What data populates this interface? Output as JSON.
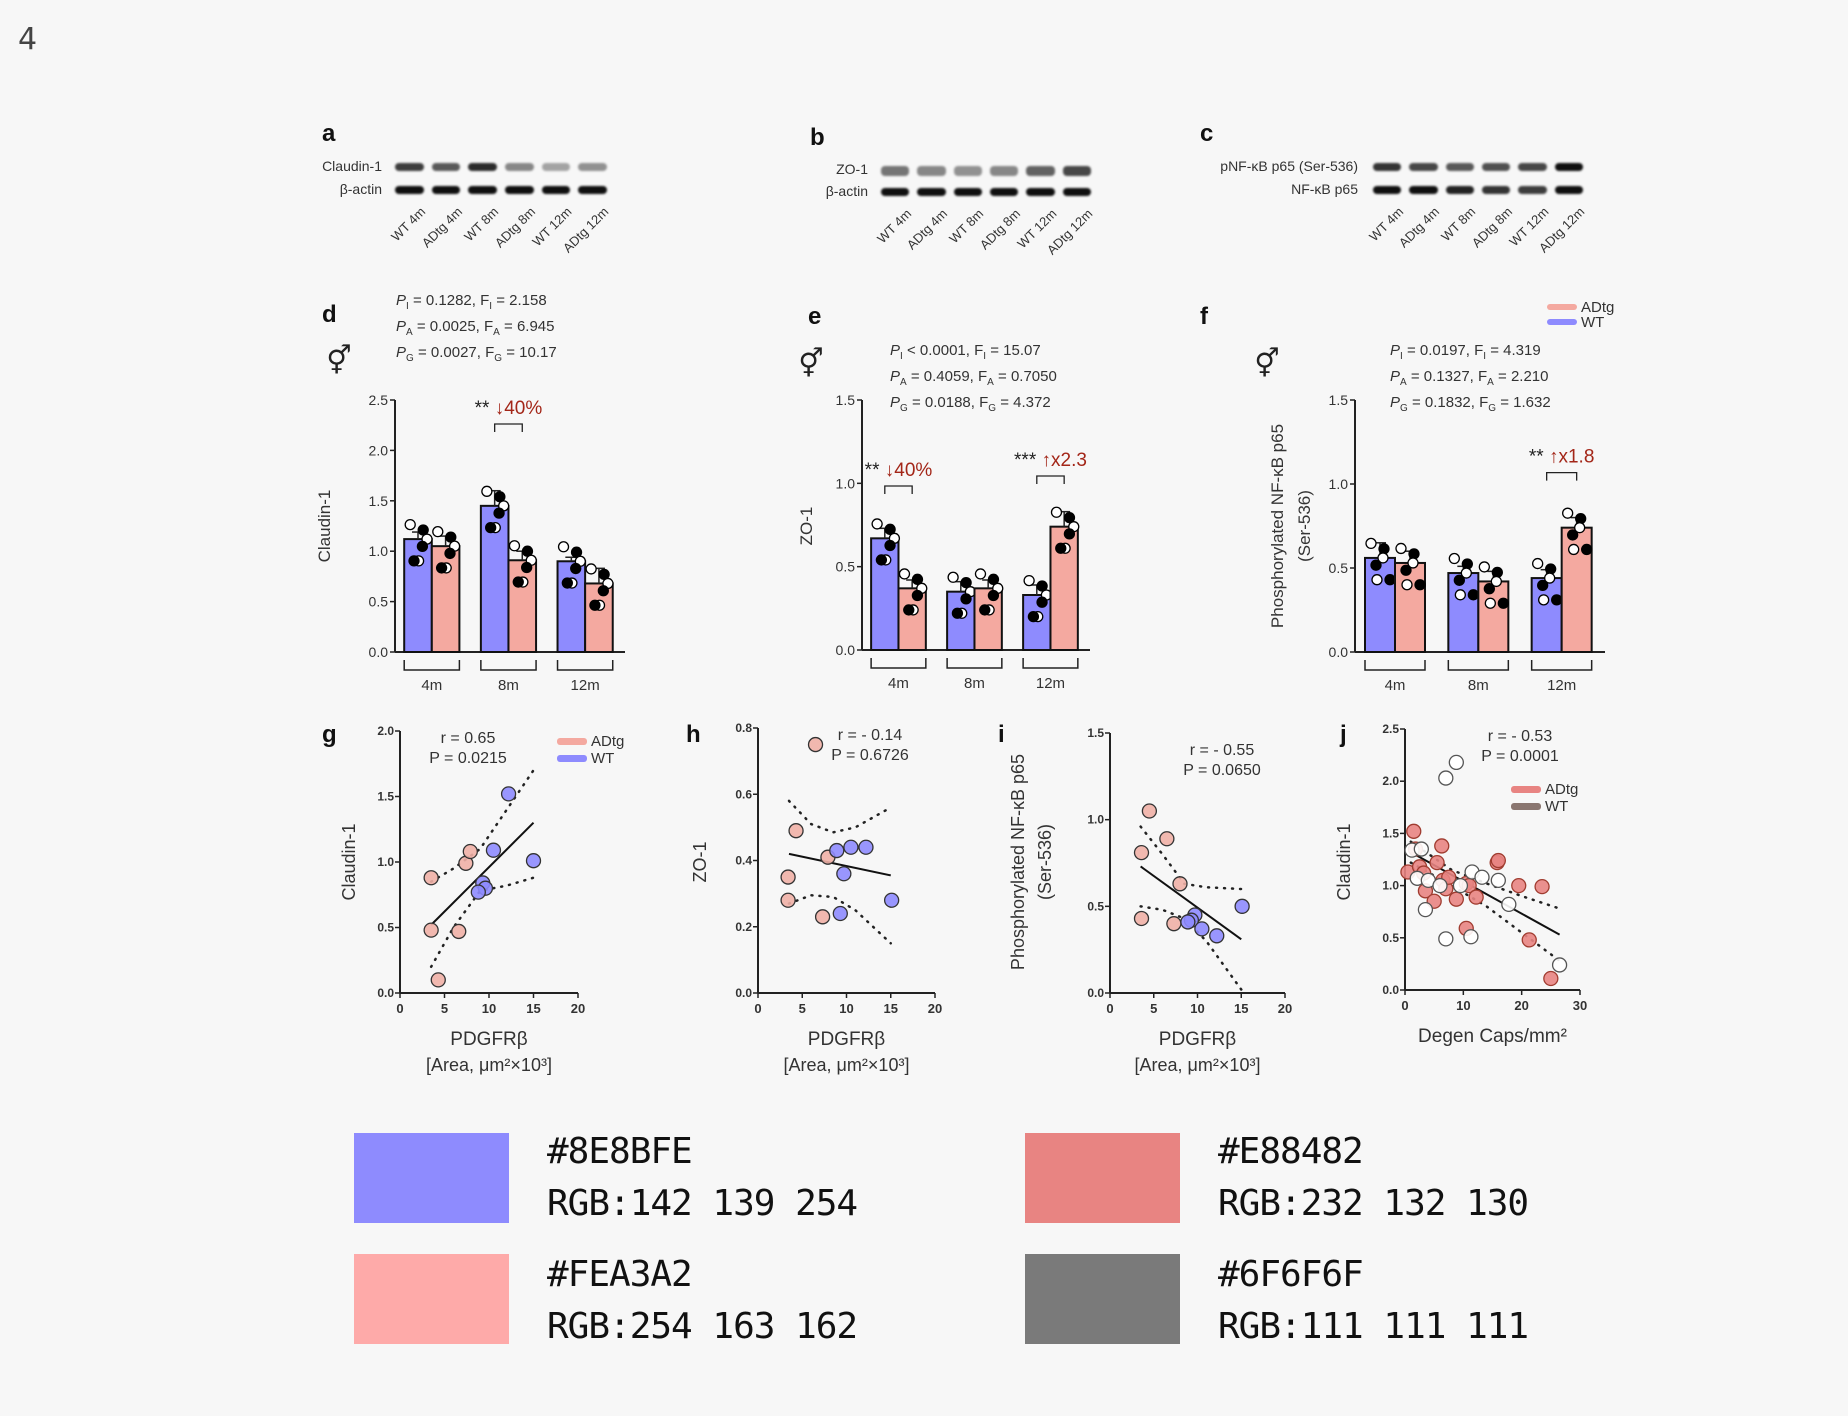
{
  "figure_number": "4",
  "colors": {
    "wt_bar": "#8E8BFE",
    "adtg_bar": "#FEA3A2",
    "adtg_dark": "#E88482",
    "grey": "#6F6F6F"
  },
  "blots": [
    {
      "panel": "a",
      "rows": [
        "Claudin-1",
        "β-actin"
      ],
      "lanes": [
        "WT 4m",
        "ADtg 4m",
        "WT 8m",
        "ADtg 8m",
        "WT 12m",
        "ADtg 12m"
      ],
      "intensity": [
        [
          0.75,
          0.6,
          0.85,
          0.35,
          0.2,
          0.3
        ],
        [
          1,
          1,
          1,
          1,
          1,
          1
        ]
      ]
    },
    {
      "panel": "b",
      "rows": [
        "ZO-1",
        "β-actin"
      ],
      "lanes": [
        "WT 4m",
        "ADtg 4m",
        "WT 8m",
        "ADtg 8m",
        "WT 12m",
        "ADtg 12m"
      ],
      "intensity": [
        [
          0.45,
          0.35,
          0.3,
          0.35,
          0.55,
          0.7
        ],
        [
          1,
          1,
          1,
          1,
          1,
          1
        ]
      ]
    },
    {
      "panel": "c",
      "rows": [
        "pNF-κB p65 (Ser-536)",
        "NF-κB p65"
      ],
      "lanes": [
        "WT 4m",
        "ADtg 4m",
        "WT 8m",
        "ADtg 8m",
        "WT 12m",
        "ADtg 12m"
      ],
      "intensity": [
        [
          0.8,
          0.7,
          0.6,
          0.65,
          0.7,
          1
        ],
        [
          1,
          1,
          0.9,
          0.8,
          0.75,
          1
        ]
      ]
    }
  ],
  "sex_symbol": "⚥",
  "chart_data": [
    {
      "panel": "d",
      "type": "bar",
      "ylabel": "Claudin-1",
      "ylim": [
        0,
        2.5
      ],
      "yticks": [
        "0.0",
        "0.5",
        "1.0",
        "1.5",
        "2.0",
        "2.5"
      ],
      "categories": [
        "4m",
        "8m",
        "12m"
      ],
      "series": [
        {
          "name": "WT",
          "values": [
            1.12,
            1.45,
            0.9
          ],
          "sem": [
            0.07,
            0.15,
            0.04
          ]
        },
        {
          "name": "ADtg",
          "values": [
            1.05,
            0.91,
            0.68
          ],
          "sem": [
            0.1,
            0.09,
            0.15
          ]
        }
      ],
      "stats": [
        {
          "p": "P",
          "sub": "I",
          "text": " = 0.1282, F",
          "fsub": "I",
          "ftext": " = 2.158"
        },
        {
          "p": "P",
          "sub": "A",
          "text": " = 0.0025, F",
          "fsub": "A",
          "ftext": " = 6.945"
        },
        {
          "p": "P",
          "sub": "G",
          "text": " = 0.0027, F",
          "fsub": "G",
          "ftext": " = 10.17"
        }
      ],
      "annotation": {
        "category": "8m",
        "stars": "**",
        "arrow": "↓",
        "change": "40%"
      }
    },
    {
      "panel": "e",
      "type": "bar",
      "ylabel": "ZO-1",
      "ylim": [
        0,
        1.5
      ],
      "yticks": [
        "0.0",
        "0.5",
        "1.0",
        "1.5"
      ],
      "categories": [
        "4m",
        "8m",
        "12m"
      ],
      "series": [
        {
          "name": "WT",
          "values": [
            0.67,
            0.35,
            0.33
          ],
          "sem": [
            0.06,
            0.06,
            0.06
          ]
        },
        {
          "name": "ADtg",
          "values": [
            0.37,
            0.37,
            0.74
          ],
          "sem": [
            0.05,
            0.05,
            0.09
          ]
        }
      ],
      "stats": [
        {
          "p": "P",
          "sub": "I",
          "text": " < 0.0001, F",
          "fsub": "I",
          "ftext": " = 15.07"
        },
        {
          "p": "P",
          "sub": "A",
          "text": " = 0.4059, F",
          "fsub": "A",
          "ftext": " = 0.7050"
        },
        {
          "p": "P",
          "sub": "G",
          "text": " = 0.0188, F",
          "fsub": "G",
          "ftext": " = 4.372"
        }
      ],
      "annotations": [
        {
          "category": "4m",
          "stars": "**",
          "arrow": "↓",
          "change": "40%"
        },
        {
          "category": "12m",
          "stars": "***",
          "arrow": "↑",
          "change": "x2.3"
        }
      ]
    },
    {
      "panel": "f",
      "type": "bar",
      "ylabel": "Phosphorylated NF-κB p65",
      "ylabel2": "(Ser-536)",
      "ylim": [
        0,
        1.5
      ],
      "yticks": [
        "0.0",
        "0.5",
        "1.0",
        "1.5"
      ],
      "categories": [
        "4m",
        "8m",
        "12m"
      ],
      "series": [
        {
          "name": "WT",
          "values": [
            0.56,
            0.47,
            0.44
          ],
          "sem": [
            0.09,
            0.04,
            0.05
          ]
        },
        {
          "name": "ADtg",
          "values": [
            0.53,
            0.42,
            0.74
          ],
          "sem": [
            0.07,
            0.06,
            0.06
          ]
        }
      ],
      "legend": [
        "ADtg",
        "WT"
      ],
      "stats": [
        {
          "p": "P",
          "sub": "I",
          "text": " = 0.0197, F",
          "fsub": "I",
          "ftext": " = 4.319"
        },
        {
          "p": "P",
          "sub": "A",
          "text": " = 0.1327, F",
          "fsub": "A",
          "ftext": " = 2.210"
        },
        {
          "p": "P",
          "sub": "G",
          "text": " = 0.1832, F",
          "fsub": "G",
          "ftext": " = 1.632"
        }
      ],
      "annotation": {
        "category": "12m",
        "stars": "**",
        "arrow": "↑",
        "change": "x1.8"
      }
    },
    {
      "panel": "g",
      "type": "scatter",
      "ylabel": "Claudin-1",
      "xlabel": "PDGFRβ",
      "xlabel2": "[Area, μm²×10³]",
      "xlim": [
        0,
        20
      ],
      "ylim": [
        0,
        2.0
      ],
      "xticks": [
        "0",
        "5",
        "10",
        "15",
        "20"
      ],
      "yticks": [
        "0.0",
        "0.5",
        "1.0",
        "1.5",
        "2.0"
      ],
      "r": "r = 0.65",
      "p": "P = 0.0215",
      "legend": [
        "ADtg",
        "WT"
      ],
      "series": [
        {
          "name": "ADtg",
          "points": [
            [
              3.5,
              0.88
            ],
            [
              3.5,
              0.48
            ],
            [
              4.3,
              0.1
            ],
            [
              6.6,
              0.47
            ],
            [
              7.4,
              0.99
            ],
            [
              7.9,
              1.08
            ]
          ]
        },
        {
          "name": "WT",
          "points": [
            [
              12.2,
              1.52
            ],
            [
              10.5,
              1.09
            ],
            [
              15.0,
              1.01
            ],
            [
              9.3,
              0.84
            ],
            [
              9.6,
              0.8
            ],
            [
              8.8,
              0.77
            ]
          ]
        }
      ],
      "fit": [
        [
          3.5,
          0.52
        ],
        [
          15,
          1.3
        ]
      ],
      "ci_upper": [
        [
          3.5,
          0.85
        ],
        [
          6,
          0.95
        ],
        [
          9,
          1.1
        ],
        [
          12,
          1.4
        ],
        [
          15,
          1.7
        ]
      ],
      "ci_lower": [
        [
          3.5,
          0.2
        ],
        [
          6,
          0.5
        ],
        [
          9,
          0.78
        ],
        [
          12,
          0.82
        ],
        [
          15,
          0.88
        ]
      ]
    },
    {
      "panel": "h",
      "type": "scatter",
      "ylabel": "ZO-1",
      "xlabel": "PDGFRβ",
      "xlabel2": "[Area, μm²×10³]",
      "xlim": [
        0,
        20
      ],
      "ylim": [
        0,
        0.8
      ],
      "xticks": [
        "0",
        "5",
        "10",
        "15",
        "20"
      ],
      "yticks": [
        "0.0",
        "0.2",
        "0.4",
        "0.6",
        "0.8"
      ],
      "r": "r = - 0.14",
      "p": "P = 0.6726",
      "series": [
        {
          "name": "ADtg",
          "points": [
            [
              6.5,
              0.75
            ],
            [
              4.3,
              0.49
            ],
            [
              3.4,
              0.35
            ],
            [
              3.4,
              0.28
            ],
            [
              7.3,
              0.23
            ],
            [
              7.9,
              0.41
            ]
          ]
        },
        {
          "name": "WT",
          "points": [
            [
              8.9,
              0.43
            ],
            [
              10.5,
              0.44
            ],
            [
              12.2,
              0.44
            ],
            [
              9.7,
              0.36
            ],
            [
              9.3,
              0.24
            ],
            [
              15.1,
              0.28
            ]
          ]
        }
      ],
      "fit": [
        [
          3.5,
          0.42
        ],
        [
          15,
          0.355
        ]
      ],
      "ci_upper": [
        [
          3.5,
          0.58
        ],
        [
          6,
          0.51
        ],
        [
          8.5,
          0.485
        ],
        [
          11,
          0.5
        ],
        [
          15,
          0.56
        ]
      ],
      "ci_lower": [
        [
          3.5,
          0.27
        ],
        [
          6,
          0.295
        ],
        [
          8.5,
          0.29
        ],
        [
          11,
          0.25
        ],
        [
          15,
          0.15
        ]
      ]
    },
    {
      "panel": "i",
      "type": "scatter",
      "ylabel": "Phosphorylated NF-κB p65",
      "ylabel2": "(Ser-536)",
      "xlabel": "PDGFRβ",
      "xlabel2": "[Area, μm²×10³]",
      "xlim": [
        0,
        20
      ],
      "ylim": [
        0,
        1.5
      ],
      "xticks": [
        "0",
        "5",
        "10",
        "15",
        "20"
      ],
      "yticks": [
        "0.0",
        "0.5",
        "1.0",
        "1.5"
      ],
      "r": "r = - 0.55",
      "p": "P = 0.0650",
      "series": [
        {
          "name": "ADtg",
          "points": [
            [
              4.5,
              1.05
            ],
            [
              6.5,
              0.89
            ],
            [
              3.6,
              0.81
            ],
            [
              8.0,
              0.63
            ],
            [
              3.6,
              0.43
            ],
            [
              7.3,
              0.4
            ]
          ]
        },
        {
          "name": "WT",
          "points": [
            [
              15.1,
              0.5
            ],
            [
              9.7,
              0.45
            ],
            [
              9.3,
              0.42
            ],
            [
              8.9,
              0.41
            ],
            [
              10.5,
              0.37
            ],
            [
              12.2,
              0.33
            ]
          ]
        }
      ],
      "fit": [
        [
          3.5,
          0.73
        ],
        [
          15,
          0.31
        ]
      ],
      "ci_upper": [
        [
          3.5,
          0.96
        ],
        [
          6,
          0.8
        ],
        [
          8.5,
          0.63
        ],
        [
          11,
          0.61
        ],
        [
          15,
          0.6
        ]
      ],
      "ci_lower": [
        [
          3.5,
          0.5
        ],
        [
          6,
          0.48
        ],
        [
          8.5,
          0.43
        ],
        [
          11,
          0.3
        ],
        [
          15,
          0.02
        ]
      ]
    },
    {
      "panel": "j",
      "type": "scatter",
      "ylabel": "Claudin-1",
      "xlabel": "Degen Caps/mm²",
      "xlim": [
        0,
        30
      ],
      "ylim": [
        0,
        2.5
      ],
      "xticks": [
        "0",
        "10",
        "20",
        "30"
      ],
      "yticks": [
        "0.0",
        "0.5",
        "1.0",
        "1.5",
        "2.0",
        "2.5"
      ],
      "r": "r = - 0.53",
      "p": "P = 0.0001",
      "legend": [
        "ADtg",
        "WT"
      ],
      "series": [
        {
          "name": "ADtg",
          "points": [
            [
              1.5,
              1.52
            ],
            [
              0.5,
              1.13
            ],
            [
              1.8,
              1.35
            ],
            [
              2.5,
              1.18
            ],
            [
              3.2,
              1.12
            ],
            [
              3.5,
              0.95
            ],
            [
              5,
              0.85
            ],
            [
              5.5,
              1.22
            ],
            [
              6.3,
              1.38
            ],
            [
              6.5,
              1.05
            ],
            [
              7,
              0.97
            ],
            [
              7.5,
              1.08
            ],
            [
              8.8,
              0.87
            ],
            [
              10.5,
              1.02
            ],
            [
              10.5,
              0.59
            ],
            [
              11,
              1.0
            ],
            [
              12.2,
              0.89
            ],
            [
              15.8,
              1.22
            ],
            [
              16,
              1.24
            ],
            [
              19.5,
              1.0
            ],
            [
              21.3,
              0.48
            ],
            [
              23.5,
              0.99
            ],
            [
              25,
              0.11
            ]
          ]
        },
        {
          "name": "WT",
          "points": [
            [
              1.2,
              1.34
            ],
            [
              2.1,
              1.07
            ],
            [
              2.8,
              1.35
            ],
            [
              3.5,
              0.77
            ],
            [
              4.0,
              1.05
            ],
            [
              6.0,
              1.0
            ],
            [
              7.0,
              2.03
            ],
            [
              8.8,
              2.18
            ],
            [
              7.0,
              0.49
            ],
            [
              9.5,
              1.0
            ],
            [
              11.5,
              1.13
            ],
            [
              11.3,
              0.51
            ],
            [
              13.2,
              1.08
            ],
            [
              16,
              1.05
            ],
            [
              17.8,
              0.82
            ],
            [
              26.5,
              0.24
            ]
          ]
        }
      ],
      "fit": [
        [
          1,
          1.32
        ],
        [
          26.5,
          0.53
        ]
      ],
      "ci_upper": [
        [
          1,
          1.42
        ],
        [
          8,
          1.15
        ],
        [
          14,
          1.02
        ],
        [
          20,
          0.9
        ],
        [
          26.5,
          0.78
        ]
      ],
      "ci_lower": [
        [
          1,
          1.22
        ],
        [
          8,
          1.0
        ],
        [
          14,
          0.8
        ],
        [
          20,
          0.55
        ],
        [
          26.5,
          0.28
        ]
      ]
    }
  ],
  "swatches": [
    {
      "hex": "#8E8BFE",
      "rgb": "RGB:142 139 254"
    },
    {
      "hex": "#E88482",
      "rgb": "RGB:232 132 130"
    },
    {
      "hex": "#FEA3A2",
      "rgb": "RGB:254 163 162"
    },
    {
      "hex": "#6F6F6F",
      "rgb": "RGB:111 111 111"
    }
  ]
}
